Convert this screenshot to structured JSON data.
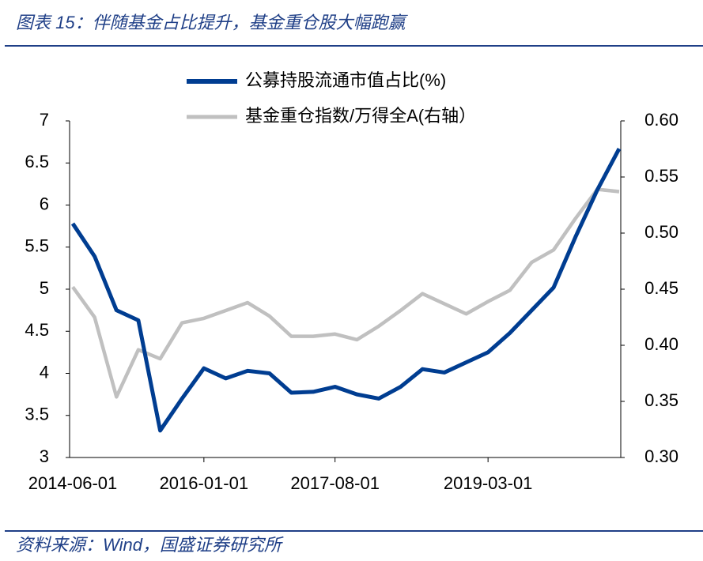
{
  "header": {
    "title": "图表 15：伴随基金占比提升，基金重仓股大幅跑赢"
  },
  "chart_data": {
    "type": "line",
    "categories": [
      "2014-06-01",
      null,
      null,
      null,
      null,
      null,
      "2016-01-01",
      null,
      null,
      null,
      null,
      null,
      "2017-08-01",
      null,
      null,
      null,
      null,
      null,
      null,
      "2019-03-01",
      null,
      null,
      null,
      null,
      null,
      null
    ],
    "series": [
      {
        "name": "公募持股流通市值占比(%)",
        "color": "#003d91",
        "axis": "y",
        "values": [
          5.78,
          5.39,
          4.75,
          4.63,
          3.32,
          3.7,
          4.06,
          3.94,
          4.03,
          4.0,
          3.77,
          3.78,
          3.84,
          3.75,
          3.7,
          3.84,
          4.05,
          4.01,
          4.13,
          4.25,
          4.48,
          4.75,
          5.02,
          5.62,
          6.18,
          6.67
        ]
      },
      {
        "name": "基金重仓指数/万得全A(右轴）",
        "color": "#c0c0c0",
        "axis": "y2",
        "values": [
          0.452,
          0.425,
          0.354,
          0.396,
          0.388,
          0.42,
          0.424,
          0.431,
          0.438,
          0.426,
          0.408,
          0.408,
          0.41,
          0.405,
          0.417,
          0.431,
          0.446,
          0.437,
          0.428,
          0.439,
          0.449,
          0.474,
          0.485,
          0.513,
          0.539,
          0.537
        ]
      }
    ],
    "ylim": [
      3,
      7
    ],
    "yticks": [
      3,
      3.5,
      4,
      4.5,
      5,
      5.5,
      6,
      6.5,
      7
    ],
    "y2lim": [
      0.3,
      0.6
    ],
    "y2ticks": [
      {
        "value": 0.3,
        "label": "0.30"
      },
      {
        "value": 0.35,
        "label": "0.35"
      },
      {
        "value": 0.4,
        "label": "0.40"
      },
      {
        "value": 0.45,
        "label": "0.45"
      },
      {
        "value": 0.5,
        "label": "0.50"
      },
      {
        "value": 0.55,
        "label": "0.55"
      },
      {
        "value": 0.6,
        "label": "0.60"
      }
    ],
    "legend": "top"
  },
  "footer": {
    "source": "资料来源：Wind，国盛证券研究所"
  }
}
